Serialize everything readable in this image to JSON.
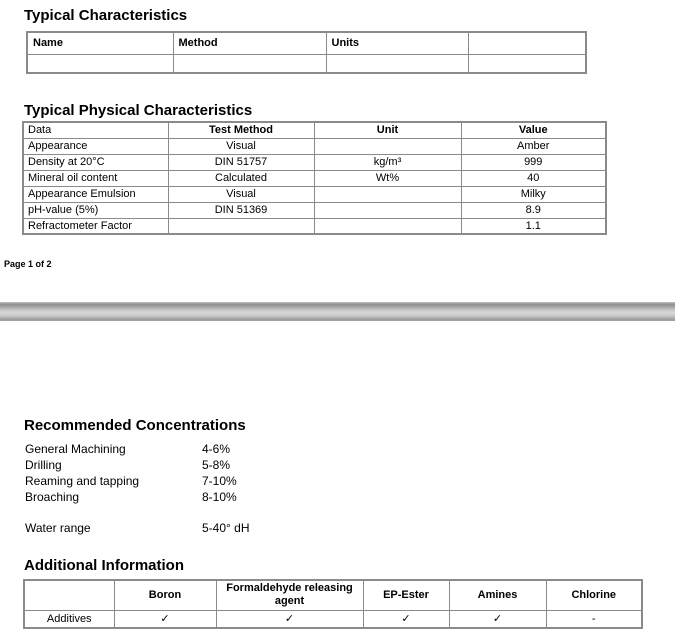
{
  "page1": {
    "typical_characteristics": {
      "title": "Typical Characteristics",
      "table": {
        "headers": [
          "Name",
          "Method",
          "Units",
          ""
        ],
        "rows": [
          [
            "",
            "",
            "",
            ""
          ]
        ]
      }
    },
    "physical_characteristics": {
      "title": "Typical Physical Characteristics",
      "table": {
        "headers": [
          "Data",
          "Test Method",
          "Unit",
          "Value"
        ],
        "rows": [
          [
            "Appearance",
            "Visual",
            "",
            "Amber"
          ],
          [
            "Density at 20°C",
            "DIN 51757",
            "kg/m³",
            "999"
          ],
          [
            "Mineral oil content",
            "Calculated",
            "Wt%",
            "40"
          ],
          [
            "Appearance Emulsion",
            "Visual",
            "",
            "Milky"
          ],
          [
            "pH-value (5%)",
            "DIN 51369",
            "",
            "8.9"
          ],
          [
            "Refractometer Factor",
            "",
            "",
            "1.1"
          ]
        ]
      }
    },
    "footer": "Page 1 of 2"
  },
  "page2": {
    "recommended_concentrations": {
      "title": "Recommended Concentrations",
      "items": [
        {
          "label": "General Machining",
          "value": "4-6%"
        },
        {
          "label": "Drilling",
          "value": "5-8%"
        },
        {
          "label": "Reaming and tapping",
          "value": "7-10%"
        },
        {
          "label": "Broaching",
          "value": "8-10%"
        }
      ],
      "water_range": {
        "label": "Water range",
        "value": "5-40° dH"
      }
    },
    "additional_information": {
      "title": "Additional Information",
      "table": {
        "headers": [
          "",
          "Boron",
          "Formaldehyde releasing agent",
          "EP-Ester",
          "Amines",
          "Chlorine"
        ],
        "rows": [
          [
            "Additives",
            "✓",
            "✓",
            "✓",
            "✓",
            "-"
          ]
        ]
      }
    }
  }
}
